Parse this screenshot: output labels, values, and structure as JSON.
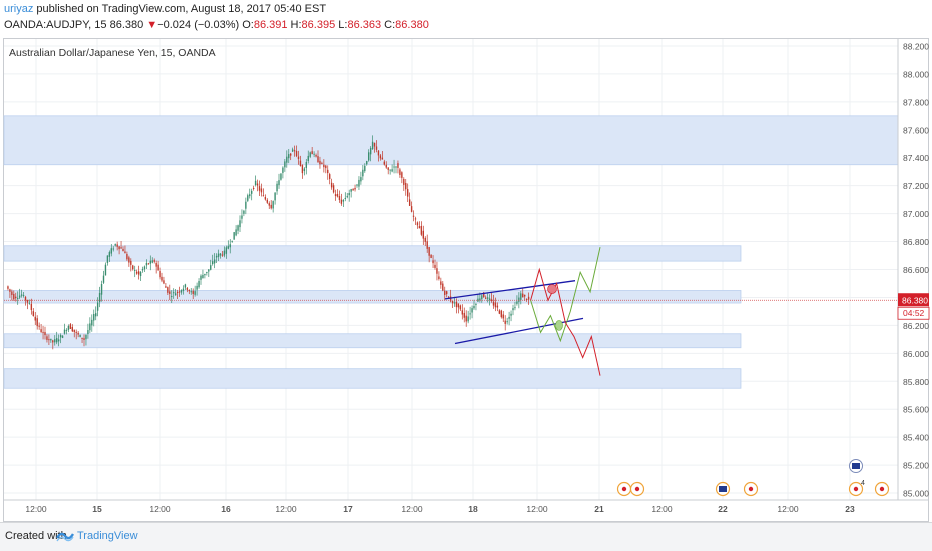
{
  "header": {
    "publisher": "uriyaz",
    "published_text": "published on TradingView.com, August 18, 2017 05:40 EST",
    "symbol": "OANDA:AUDJPY, 15",
    "last": "86.380",
    "change_arrow": "▼",
    "change": "−0.024 (−0.03%)",
    "open_label": "O:",
    "open": "86.391",
    "high_label": "H:",
    "high": "86.395",
    "low_label": "L:",
    "low": "86.363",
    "close_label": "C:",
    "close": "86.380"
  },
  "chart_title": "Australian Dollar/Japanese Yen, 15, OANDA",
  "colors": {
    "up": "#3a8d6f",
    "down": "#c0392b",
    "zone": "#dbe6f7",
    "price_line": "#d44b4b",
    "channel": "#1a1aa8",
    "bull_path": "#6aab3a",
    "bear_path": "#d3202a",
    "accent": "#3a8dd8"
  },
  "chart_data": {
    "type": "candlestick",
    "title": "Australian Dollar/Japanese Yen, 15, OANDA",
    "y_ticks": [
      "88.200",
      "88.000",
      "87.800",
      "87.600",
      "87.400",
      "87.200",
      "87.000",
      "86.800",
      "86.600",
      "86.400",
      "86.200",
      "86.000",
      "85.800",
      "85.600",
      "85.400",
      "85.200",
      "85.000"
    ],
    "ylim": [
      84.95,
      88.25
    ],
    "x_ticks": [
      "12:00",
      "15",
      "12:00",
      "16",
      "12:00",
      "17",
      "12:00",
      "18",
      "12:00",
      "21",
      "12:00",
      "22",
      "12:00",
      "23"
    ],
    "last_price_label": "86.380",
    "countdown_label": "04:52",
    "last_price": 86.38,
    "price_path": [
      [
        0,
        86.48
      ],
      [
        4,
        86.4
      ],
      [
        8,
        86.42
      ],
      [
        12,
        86.35
      ],
      [
        16,
        86.2
      ],
      [
        20,
        86.12
      ],
      [
        24,
        86.08
      ],
      [
        28,
        86.12
      ],
      [
        32,
        86.2
      ],
      [
        36,
        86.14
      ],
      [
        40,
        86.1
      ],
      [
        46,
        86.3
      ],
      [
        52,
        86.7
      ],
      [
        56,
        86.78
      ],
      [
        60,
        86.74
      ],
      [
        64,
        86.62
      ],
      [
        68,
        86.56
      ],
      [
        72,
        86.64
      ],
      [
        76,
        86.66
      ],
      [
        80,
        86.52
      ],
      [
        84,
        86.42
      ],
      [
        88,
        86.44
      ],
      [
        92,
        86.48
      ],
      [
        96,
        86.42
      ],
      [
        100,
        86.55
      ],
      [
        104,
        86.6
      ],
      [
        108,
        86.7
      ],
      [
        112,
        86.72
      ],
      [
        116,
        86.82
      ],
      [
        120,
        86.95
      ],
      [
        124,
        87.12
      ],
      [
        128,
        87.22
      ],
      [
        132,
        87.12
      ],
      [
        136,
        87.05
      ],
      [
        140,
        87.25
      ],
      [
        144,
        87.4
      ],
      [
        148,
        87.46
      ],
      [
        152,
        87.3
      ],
      [
        156,
        87.45
      ],
      [
        160,
        87.38
      ],
      [
        164,
        87.32
      ],
      [
        168,
        87.15
      ],
      [
        172,
        87.08
      ],
      [
        176,
        87.15
      ],
      [
        180,
        87.2
      ],
      [
        184,
        87.35
      ],
      [
        188,
        87.5
      ],
      [
        192,
        87.4
      ],
      [
        196,
        87.3
      ],
      [
        200,
        87.35
      ],
      [
        204,
        87.22
      ],
      [
        208,
        87.0
      ],
      [
        212,
        86.9
      ],
      [
        216,
        86.75
      ],
      [
        220,
        86.6
      ],
      [
        224,
        86.45
      ],
      [
        228,
        86.38
      ],
      [
        232,
        86.33
      ],
      [
        236,
        86.24
      ],
      [
        240,
        86.35
      ],
      [
        244,
        86.42
      ],
      [
        248,
        86.38
      ],
      [
        252,
        86.32
      ],
      [
        256,
        86.22
      ],
      [
        260,
        86.32
      ],
      [
        264,
        86.42
      ],
      [
        268,
        86.38
      ]
    ],
    "zones": [
      {
        "from": 87.35,
        "to": 87.7,
        "x_end": 1.0
      },
      {
        "from": 86.66,
        "to": 86.77,
        "x_end": 0.84
      },
      {
        "from": 86.36,
        "to": 86.45,
        "x_end": 0.84
      },
      {
        "from": 86.04,
        "to": 86.14,
        "x_end": 0.84
      },
      {
        "from": 85.75,
        "to": 85.89,
        "x_end": 0.84
      }
    ],
    "channel": {
      "upper": [
        [
          0,
          86.39
        ],
        [
          1,
          86.52
        ]
      ],
      "lower": [
        [
          0,
          86.07
        ],
        [
          1,
          86.25
        ]
      ]
    },
    "projection_bull": [
      86.38,
      86.15,
      86.27,
      86.09,
      86.3,
      86.58,
      86.44,
      86.76
    ],
    "projection_bear": [
      86.38,
      86.6,
      86.38,
      86.5,
      86.22,
      86.12,
      85.97,
      86.12,
      85.84
    ]
  },
  "footer": {
    "created_with": "Created with",
    "brand": "TradingView"
  },
  "events_badge_count": "4"
}
